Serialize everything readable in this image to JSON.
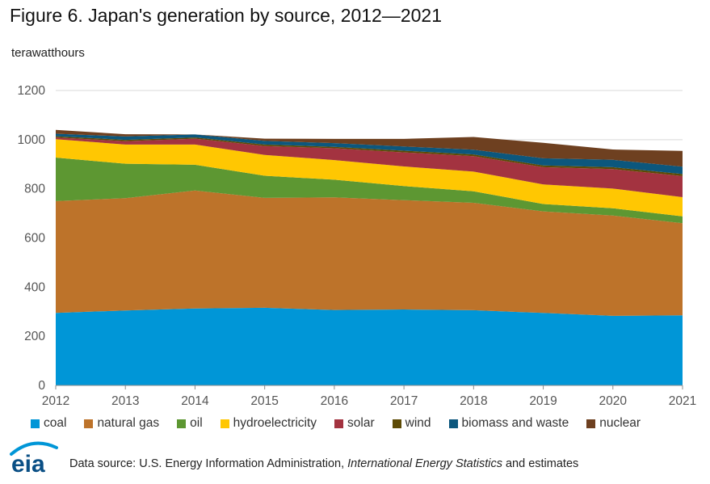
{
  "title": "Figure 6. Japan's generation by source, 2012—2021",
  "unit_label": "terawatthours",
  "logo_text": "eia",
  "source": {
    "prefix": "Data source: U.S. Energy Information Administration, ",
    "italic": "International Energy Statistics",
    "suffix": " and estimates"
  },
  "chart_data": {
    "type": "area",
    "stacked": true,
    "x": [
      "2012",
      "2013",
      "2014",
      "2015",
      "2016",
      "2017",
      "2018",
      "2019",
      "2020",
      "2021"
    ],
    "ylim": [
      0,
      1200
    ],
    "yticks": [
      0,
      200,
      400,
      600,
      800,
      1000,
      1200
    ],
    "ytick_labels": [
      "0",
      "200",
      "400",
      "600",
      "800",
      "1000",
      "1200"
    ],
    "grid": true,
    "legend_position": "bottom",
    "series": [
      {
        "name": "coal",
        "color": "#0096d7",
        "values": [
          295,
          305,
          313,
          316,
          307,
          309,
          306,
          295,
          283,
          285
        ]
      },
      {
        "name": "natural gas",
        "color": "#bd732a",
        "values": [
          455,
          457,
          480,
          447,
          458,
          445,
          437,
          413,
          408,
          375
        ]
      },
      {
        "name": "oil",
        "color": "#5d9732",
        "values": [
          177,
          140,
          105,
          90,
          72,
          57,
          47,
          30,
          30,
          28
        ]
      },
      {
        "name": "hydroelectricity",
        "color": "#ffc702",
        "values": [
          75,
          78,
          82,
          85,
          80,
          80,
          80,
          80,
          80,
          78
        ]
      },
      {
        "name": "solar",
        "color": "#a33340",
        "values": [
          7,
          14,
          24,
          36,
          48,
          57,
          63,
          70,
          79,
          86
        ]
      },
      {
        "name": "wind",
        "color": "#5d4a05",
        "values": [
          5,
          5,
          5,
          6,
          6,
          7,
          7,
          7,
          8,
          8
        ]
      },
      {
        "name": "biomass and waste",
        "color": "#0c577d",
        "values": [
          10,
          14,
          12,
          15,
          15,
          17,
          19,
          29,
          30,
          30
        ]
      },
      {
        "name": "nuclear",
        "color": "#6e4020",
        "values": [
          16,
          9,
          0,
          9,
          17,
          31,
          52,
          63,
          42,
          64
        ]
      }
    ]
  }
}
